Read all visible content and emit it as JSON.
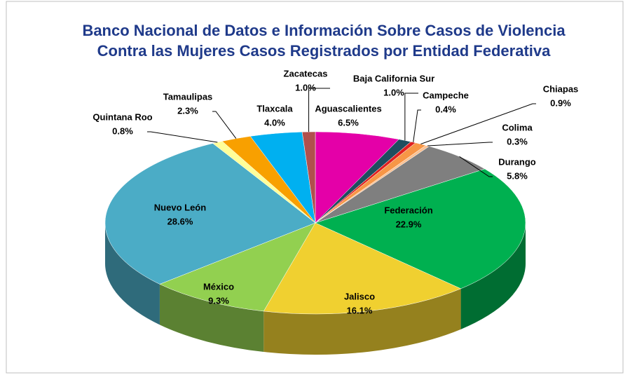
{
  "chart_data": {
    "type": "pie",
    "title": [
      "Banco Nacional  de Datos e Información Sobre Casos de Violencia",
      "Contra las Mujeres Casos Registrados por Entidad Federativa"
    ],
    "categories": [
      "Aguascalientes",
      "Baja California Sur",
      "Campeche",
      "Chiapas",
      "Colima",
      "Durango",
      "Federación",
      "Jalisco",
      "México",
      "Nuevo León",
      "Quintana Roo",
      "Tamaulipas",
      "Tlaxcala",
      "Zacatecas"
    ],
    "values": [
      6.5,
      1.0,
      0.4,
      0.9,
      0.3,
      5.8,
      22.9,
      16.1,
      9.3,
      28.6,
      0.8,
      2.3,
      4.0,
      1.0
    ],
    "value_labels": [
      "6.5%",
      "1.0%",
      "0.4%",
      "0.9%",
      "0.3%",
      "5.8%",
      "22.9%",
      "16.1%",
      "9.3%",
      "28.6%",
      "0.8%",
      "2.3%",
      "4.0%",
      "1.0%"
    ],
    "colors": [
      "#e400a8",
      "#1f4e5f",
      "#e02020",
      "#f79646",
      "#fac090",
      "#7f7f7f",
      "#00b050",
      "#f0d030",
      "#92d050",
      "#4bacc6",
      "#ffff99",
      "#f8a000",
      "#00b0f0",
      "#b0504d"
    ]
  }
}
